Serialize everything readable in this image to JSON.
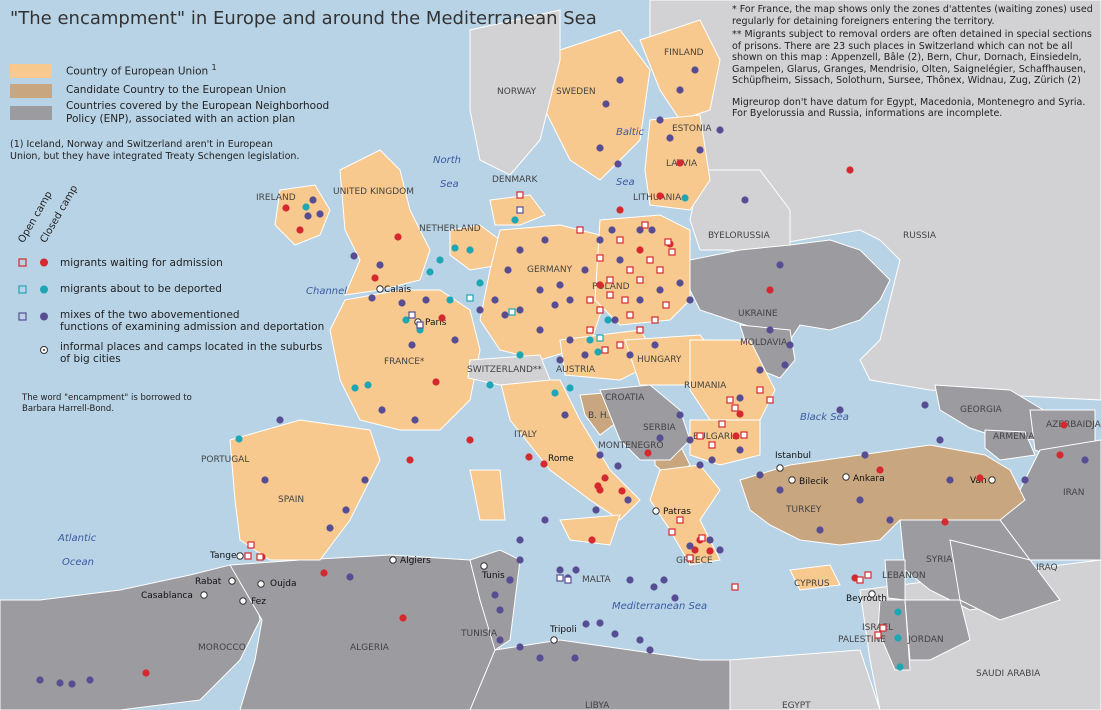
{
  "title": "\"The encampment\" in Europe and around the Mediterranean Sea",
  "legend": {
    "eu": "Country of European Union",
    "eu_sup": "1",
    "candidate": "Candidate Country to the European Union",
    "enp": "Countries covered by the European Neighborhood Policy (ENP), associated with an action plan",
    "enp_line1": "Countries covered by the European Neighborhood",
    "enp_line2": "Policy (ENP), associated with an action plan",
    "footnote1_line1": "(1) Iceland, Norway and Switzerland aren't in European",
    "footnote1_line2": "Union, but they have integrated Treaty Schengen legislation.",
    "open_camp": "Open camp",
    "closed_camp": "Closed camp",
    "waiting": "migrants waiting for admission",
    "deported": "migrants about to be deported",
    "mixed_line1": "mixes of the two abovementioned",
    "mixed_line2": "functions of examining admission and deportation",
    "informal_line1": "informal places and camps located in the suburbs",
    "informal_line2": "of big cities",
    "borrowed_line1": "The word \"encampment\" is borrowed to",
    "borrowed_line2": "Barbara Harrell-Bond."
  },
  "notes": {
    "france": "* For France, the map shows only the zones d'attentes (waiting zones) used regularly for detaining foreigners entering the territory.",
    "switzerland": "** Migrants subject to removal orders are often detained in special sections of prisons. There are 23 such places in Switzerland which can not be all shown on this map : Appenzell, Bâle (2), Bern, Chur, Dornach, Einsiedeln, Gampelen, Glarus, Granges, Mendrisio, Olten, Saignelégier, Schaffhausen, Schüpfheim, Sissach, Solothurn, Sursee, Thônex, Widnau, Zug, Zürich (2)",
    "migreurop": "Migreurop don't have datum for Egypt, Macedonia, Montenegro and Syria. For Byelorussia and Russia, informations are incomplete."
  },
  "colors": {
    "sea": "#b8d3e6",
    "eu": "#f8c98f",
    "candidate": "#c8a67f",
    "enp": "#9b9ba0",
    "other": "#d2d2d4",
    "red": "#d42a2f",
    "teal": "#1ea6b4",
    "purple": "#574d93",
    "border": "#ffffff"
  },
  "seas": [
    {
      "name": "North Sea",
      "lines": [
        "North",
        "Sea"
      ]
    },
    {
      "name": "Baltic Sea",
      "lines": [
        "Baltic",
        "Sea"
      ]
    },
    {
      "name": "Channel",
      "lines": [
        "Channel"
      ]
    },
    {
      "name": "Atlantic Ocean",
      "lines": [
        "Atlantic",
        "Ocean"
      ]
    },
    {
      "name": "Mediterranean Sea",
      "lines": [
        "Mediterranean Sea"
      ]
    },
    {
      "name": "Black Sea",
      "lines": [
        "Black Sea"
      ]
    }
  ],
  "countries": [
    "FINLAND",
    "NORWAY",
    "SWEDEN",
    "ESTONIA",
    "LATVIA",
    "LITHUANIA",
    "DENMARK",
    "IRELAND",
    "UNITED KINGDOM",
    "NETHERLAND",
    "GERMANY",
    "POLAND",
    "BYELORUSSIA",
    "RUSSIA",
    "UKRAINE",
    "MOLDAVIA",
    "HUNGARY",
    "RUMANIA",
    "AUSTRIA",
    "SWITZERLAND**",
    "FRANCE*",
    "CROATIA",
    "B. H.",
    "SERBIA",
    "MONTENEGRO",
    "BULGARIA",
    "ITALY",
    "PORTUGAL",
    "SPAIN",
    "GREECE",
    "TURKEY",
    "GEORGIA",
    "ARMENIA",
    "AZERBAIDJAN",
    "IRAN",
    "SYRIA",
    "IRAQ",
    "CYPRUS",
    "LEBANON",
    "ISRAEL",
    "PALESTINE",
    "JORDAN",
    "SAUDI ARABIA",
    "EGYPT",
    "LIBYA",
    "TUNISIA",
    "ALGERIA",
    "MOROCCO",
    "MALTA"
  ],
  "cities": [
    "Calais",
    "Paris",
    "Rome",
    "Istanbul",
    "Bilecik",
    "Ankara",
    "Van",
    "Patras",
    "Tanger",
    "Rabat",
    "Oujda",
    "Casablanca",
    "Fez",
    "Algiers",
    "Tunis",
    "Tripoli",
    "Beyrouth"
  ]
}
